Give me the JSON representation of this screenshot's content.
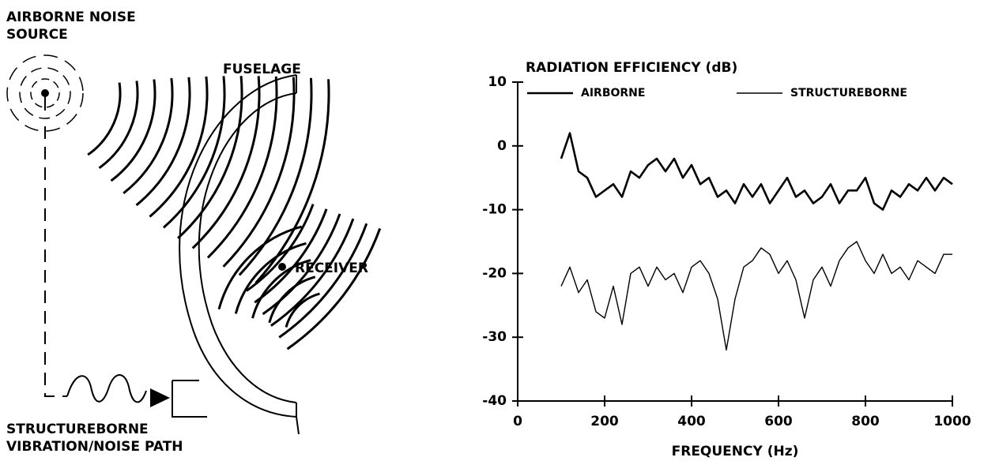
{
  "diagram": {
    "source_label": [
      "AIRBORNE NOISE",
      "SOURCE"
    ],
    "fuselage_label": "FUSELAGE",
    "receiver_label": "RECEIVER",
    "path_label": [
      "STRUCTUREBORNE",
      "VIBRATION/NOISE PATH"
    ]
  },
  "chart_data": {
    "type": "line",
    "title": "RADIATION EFFICIENCY (dB)",
    "xlabel": "FREQUENCY (Hz)",
    "x": [
      100,
      120,
      140,
      160,
      180,
      200,
      220,
      240,
      260,
      280,
      300,
      320,
      340,
      360,
      380,
      400,
      420,
      440,
      460,
      480,
      500,
      520,
      540,
      560,
      580,
      600,
      620,
      640,
      660,
      680,
      700,
      720,
      740,
      760,
      780,
      800,
      820,
      840,
      860,
      880,
      900,
      920,
      940,
      960,
      980,
      1000
    ],
    "series": [
      {
        "name": "AIRBORNE",
        "color": "#000000",
        "values": [
          -2,
          2,
          -4,
          -5,
          -8,
          -7,
          -6,
          -8,
          -4,
          -5,
          -3,
          -2,
          -4,
          -2,
          -5,
          -3,
          -6,
          -5,
          -8,
          -7,
          -9,
          -6,
          -8,
          -6,
          -9,
          -7,
          -5,
          -8,
          -7,
          -9,
          -8,
          -6,
          -9,
          -7,
          -7,
          -5,
          -9,
          -10,
          -7,
          -8,
          -6,
          -7,
          -5,
          -7,
          -5,
          -6
        ]
      },
      {
        "name": "STRUCTUREBORNE",
        "color": "#000000",
        "values": [
          -22,
          -19,
          -23,
          -21,
          -26,
          -27,
          -22,
          -28,
          -20,
          -19,
          -22,
          -19,
          -21,
          -20,
          -23,
          -19,
          -18,
          -20,
          -24,
          -32,
          -24,
          -19,
          -18,
          -16,
          -17,
          -20,
          -18,
          -21,
          -27,
          -21,
          -19,
          -22,
          -18,
          -16,
          -15,
          -18,
          -20,
          -17,
          -20,
          -19,
          -21,
          -18,
          -19,
          -20,
          -17,
          -17
        ]
      }
    ],
    "xlim": [
      0,
      1000
    ],
    "xticks": [
      0,
      200,
      400,
      600,
      800,
      1000
    ],
    "ylim": [
      -40,
      10
    ],
    "yticks": [
      -40,
      -30,
      -20,
      -10,
      0,
      10
    ],
    "legend": "top"
  }
}
